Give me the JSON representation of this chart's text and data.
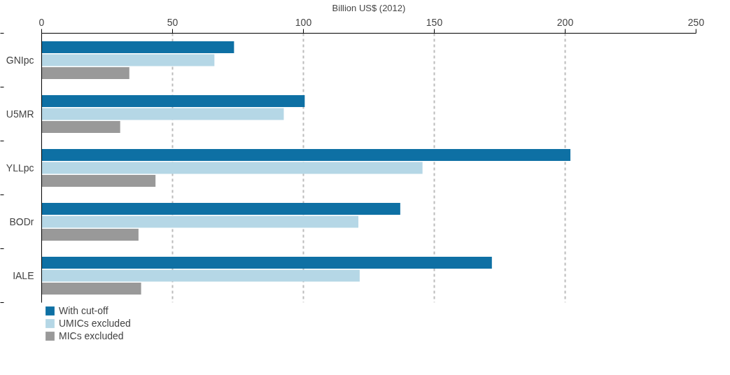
{
  "chart_data": {
    "type": "bar",
    "orientation": "horizontal",
    "xlabel": "Billion US$ (2012)",
    "categories": [
      "GNIpc",
      "U5MR",
      "YLLpc",
      "BODr",
      "IALE"
    ],
    "series": [
      {
        "name": "With cut-off",
        "color": "#0e70a4",
        "values": [
          73.5,
          100.5,
          202,
          137,
          172
        ]
      },
      {
        "name": "UMICs excluded",
        "color": "#b5d7e6",
        "values": [
          66,
          92.5,
          145.5,
          121,
          121.5
        ]
      },
      {
        "name": "MICs excluded",
        "color": "#999999",
        "values": [
          33.5,
          30,
          43.5,
          37,
          38
        ]
      }
    ],
    "xlim": [
      0,
      250
    ],
    "xticks": [
      0,
      50,
      100,
      150,
      200,
      250
    ],
    "grid": "x",
    "legend": "bottom"
  }
}
